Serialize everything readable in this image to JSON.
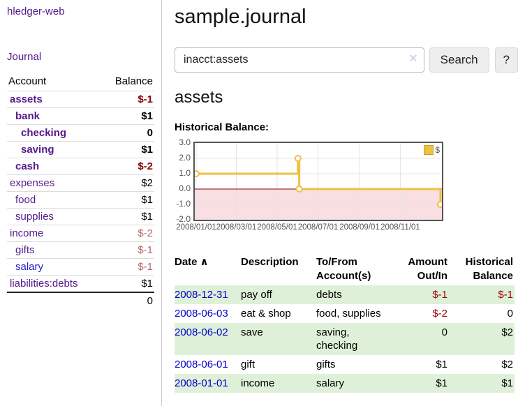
{
  "colors": {
    "link_purple": "#551a8b",
    "link_blue": "#0000cc",
    "negative_strong": "#8b0000",
    "negative_soft": "#b86a6a",
    "row_green": "#dff0d8",
    "chart_gold": "#edc240",
    "zero_line": "#8b0000",
    "negative_region": "#f9dee2",
    "grid": "#e4e4e4",
    "chart_border": "#545454"
  },
  "sidebar": {
    "brand": "hledger-web",
    "nav_journal": "Journal",
    "accounts_table": {
      "col_account": "Account",
      "col_balance": "Balance",
      "rows": [
        {
          "name": "assets",
          "level": 0,
          "bold": true,
          "balance": "$-1",
          "balance_style": "negstrong"
        },
        {
          "name": "bank",
          "level": 1,
          "bold": true,
          "balance": "$1",
          "balance_style": "normal"
        },
        {
          "name": "checking",
          "level": 2,
          "bold": true,
          "balance": "0",
          "balance_style": "normal"
        },
        {
          "name": "saving",
          "level": 2,
          "bold": true,
          "balance": "$1",
          "balance_style": "normal"
        },
        {
          "name": "cash",
          "level": 1,
          "bold": true,
          "balance": "$-2",
          "balance_style": "negstrong"
        },
        {
          "name": "expenses",
          "level": 0,
          "bold": false,
          "balance": "$2",
          "balance_style": "normal"
        },
        {
          "name": "food",
          "level": 1,
          "bold": false,
          "balance": "$1",
          "balance_style": "normal"
        },
        {
          "name": "supplies",
          "level": 1,
          "bold": false,
          "balance": "$1",
          "balance_style": "normal"
        },
        {
          "name": "income",
          "level": 0,
          "bold": false,
          "balance": "$-2",
          "balance_style": "negsoft"
        },
        {
          "name": "gifts",
          "level": 1,
          "bold": false,
          "balance": "$-1",
          "balance_style": "negsoft"
        },
        {
          "name": "salary",
          "level": 1,
          "bold": false,
          "balance": "$-1",
          "balance_style": "negsoft",
          "link_color": "blue"
        },
        {
          "name": "liabilities:debts",
          "level": 0,
          "bold": false,
          "balance": "$1",
          "balance_style": "normal"
        }
      ],
      "total": "0"
    }
  },
  "header": {
    "title": "sample.journal"
  },
  "search": {
    "query": "inacct:assets",
    "clear_icon": "✕",
    "button": "Search",
    "help_button": "?"
  },
  "account_page": {
    "heading": "assets",
    "chart_label": "Historical Balance:"
  },
  "chart_data": {
    "type": "line",
    "step": true,
    "title": "Historical Balance",
    "series": [
      {
        "name": "$",
        "color": "#edc240",
        "points": [
          [
            "2008-01-01",
            1
          ],
          [
            "2008-06-01",
            2
          ],
          [
            "2008-06-03",
            0
          ],
          [
            "2008-12-31",
            -1
          ]
        ]
      }
    ],
    "x_ticks": [
      "2008/01/01",
      "2008/03/01",
      "2008/05/01",
      "2008/07/01",
      "2008/09/01",
      "2008/11/01"
    ],
    "y_ticks": [
      "3.0",
      "2.0",
      "1.0",
      "0.0",
      "-1.0",
      "-2.0"
    ],
    "ylim": [
      -2,
      3
    ],
    "x_range_dates": [
      "2008-01-01",
      "2008-12-31"
    ],
    "grid": true,
    "negative_region_shaded": true,
    "legend_position": "top-right",
    "legend_label": "$"
  },
  "transactions": {
    "columns": [
      {
        "line1": "Date",
        "line2": "",
        "sortable": true,
        "sort_indicator": "∧",
        "align": "left"
      },
      {
        "line1": "Description",
        "line2": "",
        "align": "left"
      },
      {
        "line1": "To/From",
        "line2": "Account(s)",
        "align": "left"
      },
      {
        "line1": "Amount",
        "line2": "Out/In",
        "align": "right"
      },
      {
        "line1": "Historical",
        "line2": "Balance",
        "align": "right"
      }
    ],
    "rows": [
      {
        "date": "2008-12-31",
        "description": "pay off",
        "accounts": "debts",
        "amount": "$-1",
        "amount_neg": true,
        "balance": "$-1",
        "balance_neg": true
      },
      {
        "date": "2008-06-03",
        "description": "eat & shop",
        "accounts": "food, supplies",
        "amount": "$-2",
        "amount_neg": true,
        "balance": "0",
        "balance_neg": false
      },
      {
        "date": "2008-06-02",
        "description": "save",
        "accounts": "saving, checking",
        "amount": "0",
        "amount_neg": false,
        "balance": "$2",
        "balance_neg": false
      },
      {
        "date": "2008-06-01",
        "description": "gift",
        "accounts": "gifts",
        "amount": "$1",
        "amount_neg": false,
        "balance": "$2",
        "balance_neg": false
      },
      {
        "date": "2008-01-01",
        "description": "income",
        "accounts": "salary",
        "amount": "$1",
        "amount_neg": false,
        "balance": "$1",
        "balance_neg": false
      }
    ]
  }
}
